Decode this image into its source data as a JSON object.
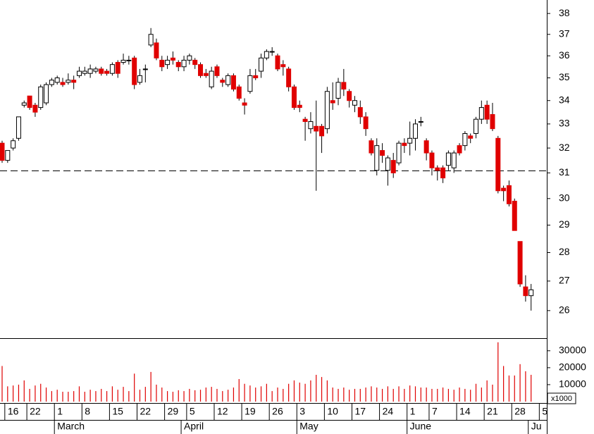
{
  "chart_data": {
    "type": "candlestick",
    "log_scale": true,
    "up_color": "#ffffff",
    "down_color": "#e00000",
    "outline_color": "#000000",
    "open": [
      32.2,
      31.5,
      32.0,
      32.4,
      33.8,
      34.2,
      33.8,
      33.7,
      33.9,
      34.7,
      34.8,
      34.8,
      34.8,
      34.9,
      35.1,
      35.2,
      35.2,
      35.3,
      35.4,
      35.3,
      35.2,
      35.7,
      35.7,
      35.8,
      35.9,
      34.8,
      35.4,
      36.5,
      36.6,
      35.8,
      35.6,
      35.9,
      35.7,
      35.5,
      35.8,
      35.8,
      35.6,
      35.2,
      34.6,
      35.5,
      34.9,
      34.7,
      35.1,
      34.6,
      33.9,
      34.4,
      35.1,
      35.3,
      35.9,
      36.2,
      36.0,
      35.6,
      35.4,
      34.6,
      33.8,
      33.2,
      32.8,
      32.9,
      32.9,
      32.8,
      34.0,
      34.1,
      34.8,
      34.4,
      33.8,
      33.7,
      33.3,
      32.3,
      31.1,
      31.9,
      31.1,
      31.5,
      31.4,
      32.2,
      32.2,
      32.4,
      33.1,
      32.3,
      31.8,
      31.2,
      31.2,
      31.3,
      31.2,
      32.1,
      32.1,
      32.5,
      32.6,
      33.2,
      33.8,
      33.4,
      32.4,
      30.4,
      30.5,
      29.9,
      28.4,
      26.8,
      26.5
    ],
    "high": [
      32.3,
      31.9,
      32.4,
      33.3,
      34.0,
      34.2,
      33.9,
      34.7,
      34.8,
      35.0,
      35.1,
      35.0,
      35.2,
      35.1,
      35.5,
      35.5,
      35.6,
      35.5,
      35.5,
      35.4,
      35.7,
      35.8,
      36.1,
      36.0,
      36.0,
      35.4,
      35.6,
      37.3,
      36.8,
      36.0,
      36.0,
      36.2,
      35.8,
      36.0,
      36.1,
      35.9,
      35.7,
      35.4,
      35.5,
      35.6,
      35.0,
      35.2,
      35.2,
      34.7,
      34.1,
      35.4,
      35.4,
      36.1,
      36.3,
      36.4,
      36.1,
      35.8,
      35.5,
      34.7,
      34.0,
      33.3,
      33.5,
      34.0,
      33.0,
      34.6,
      34.8,
      35.0,
      35.4,
      34.5,
      34.2,
      34.0,
      33.5,
      32.4,
      32.4,
      32.2,
      31.7,
      31.8,
      32.3,
      32.4,
      33.1,
      33.2,
      33.3,
      32.4,
      31.9,
      31.3,
      31.3,
      31.9,
      31.9,
      32.2,
      32.7,
      32.6,
      33.3,
      34.0,
      34.0,
      33.9,
      32.5,
      30.5,
      30.7,
      30.0,
      28.4,
      27.2,
      26.9
    ],
    "low": [
      31.4,
      31.4,
      31.9,
      32.3,
      33.7,
      33.6,
      33.3,
      33.6,
      33.8,
      34.6,
      34.7,
      34.6,
      34.7,
      34.5,
      35.0,
      35.1,
      35.0,
      35.2,
      35.1,
      35.1,
      35.1,
      35.0,
      35.6,
      35.6,
      34.5,
      34.7,
      34.8,
      36.4,
      35.8,
      35.3,
      35.4,
      35.6,
      35.3,
      35.3,
      35.6,
      35.4,
      35.0,
      35.0,
      34.5,
      35.0,
      34.6,
      34.6,
      34.4,
      34.0,
      33.4,
      34.3,
      34.9,
      35.0,
      35.8,
      36.0,
      35.3,
      35.1,
      34.4,
      33.6,
      33.5,
      32.3,
      32.6,
      30.3,
      31.8,
      32.6,
      33.6,
      33.8,
      34.2,
      33.7,
      33.5,
      33.0,
      32.5,
      31.7,
      30.9,
      31.4,
      30.5,
      30.8,
      31.3,
      31.8,
      31.7,
      31.9,
      32.9,
      31.5,
      30.9,
      30.7,
      30.6,
      31.1,
      31.0,
      31.7,
      31.9,
      32.2,
      32.4,
      33.0,
      33.0,
      32.7,
      30.2,
      29.9,
      29.7,
      28.8,
      26.8,
      26.3,
      26.0
    ],
    "close": [
      31.5,
      31.9,
      32.3,
      33.3,
      33.9,
      33.7,
      33.5,
      34.6,
      34.7,
      34.9,
      35.0,
      34.7,
      34.9,
      34.8,
      35.3,
      35.3,
      35.4,
      35.4,
      35.2,
      35.2,
      35.6,
      35.2,
      35.8,
      35.8,
      34.7,
      35.1,
      35.4,
      37.0,
      35.9,
      35.5,
      35.8,
      35.8,
      35.5,
      35.8,
      36.0,
      35.6,
      35.1,
      35.1,
      35.3,
      35.1,
      34.8,
      35.1,
      34.5,
      34.1,
      33.8,
      35.1,
      35.0,
      35.9,
      36.2,
      36.2,
      35.4,
      35.5,
      34.6,
      33.7,
      33.7,
      33.1,
      33.1,
      32.7,
      32.5,
      34.4,
      33.9,
      34.8,
      34.5,
      34.0,
      34.0,
      33.3,
      32.8,
      31.8,
      32.1,
      31.7,
      31.6,
      31.0,
      32.2,
      32.1,
      32.4,
      33.0,
      33.1,
      31.8,
      31.2,
      31.1,
      30.8,
      31.8,
      31.8,
      31.8,
      32.6,
      32.4,
      33.2,
      33.7,
      33.2,
      32.8,
      30.3,
      30.3,
      29.8,
      28.8,
      26.9,
      26.5,
      26.7
    ],
    "ylim": [
      25.1,
      38.66
    ],
    "yticks": [
      26,
      27,
      28,
      29,
      30,
      31,
      32,
      33,
      34,
      35,
      36,
      37,
      38
    ],
    "reference_line": 31.08,
    "xticks": [
      {
        "value": 1,
        "label": "16"
      },
      {
        "value": 5,
        "label": "22"
      },
      {
        "value": 10,
        "label": "1"
      },
      {
        "value": 15,
        "label": "8"
      },
      {
        "value": 20,
        "label": "15"
      },
      {
        "value": 25,
        "label": "22"
      },
      {
        "value": 30,
        "label": "29"
      },
      {
        "value": 34,
        "label": "5"
      },
      {
        "value": 39,
        "label": "12"
      },
      {
        "value": 44,
        "label": "19"
      },
      {
        "value": 49,
        "label": "26"
      },
      {
        "value": 54,
        "label": "3"
      },
      {
        "value": 59,
        "label": "10"
      },
      {
        "value": 64,
        "label": "17"
      },
      {
        "value": 69,
        "label": "24"
      },
      {
        "value": 74,
        "label": "1"
      },
      {
        "value": 78,
        "label": "7"
      },
      {
        "value": 83,
        "label": "14"
      },
      {
        "value": 88,
        "label": "21"
      },
      {
        "value": 93,
        "label": "28"
      },
      {
        "value": 98,
        "label": "5"
      }
    ],
    "month_ticks": [
      {
        "value": 10,
        "label": "March"
      },
      {
        "value": 33,
        "label": "April"
      },
      {
        "value": 54,
        "label": "May"
      },
      {
        "value": 74,
        "label": "June"
      },
      {
        "value": 96,
        "label": "Ju"
      }
    ],
    "volume": {
      "color": "#e00000",
      "unit_label": "x1000",
      "ylim": [
        0,
        37000
      ],
      "yticks": [
        10000,
        20000,
        30000
      ],
      "values": [
        21000,
        9000,
        9500,
        10000,
        12500,
        7500,
        9500,
        10500,
        8300,
        6200,
        7000,
        5800,
        5800,
        6200,
        9000,
        5800,
        7000,
        6200,
        7500,
        6200,
        9000,
        7000,
        8700,
        6200,
        16500,
        7000,
        8700,
        17500,
        10000,
        8300,
        6200,
        5800,
        6700,
        6200,
        7500,
        6700,
        7000,
        8300,
        8700,
        7500,
        6200,
        7000,
        8300,
        13300,
        10500,
        9500,
        8300,
        9000,
        10500,
        6200,
        8300,
        7500,
        10500,
        12500,
        11200,
        10500,
        12500,
        15800,
        14500,
        12500,
        8300,
        7500,
        8300,
        7000,
        7500,
        7500,
        8300,
        9000,
        8300,
        7500,
        9000,
        7500,
        9000,
        7500,
        9500,
        9000,
        8300,
        8300,
        7500,
        7500,
        8300,
        7500,
        7000,
        8300,
        7500,
        7000,
        10500,
        8300,
        12500,
        10000,
        35000,
        21000,
        15400,
        15400,
        22100,
        17900,
        15800
      ]
    }
  }
}
